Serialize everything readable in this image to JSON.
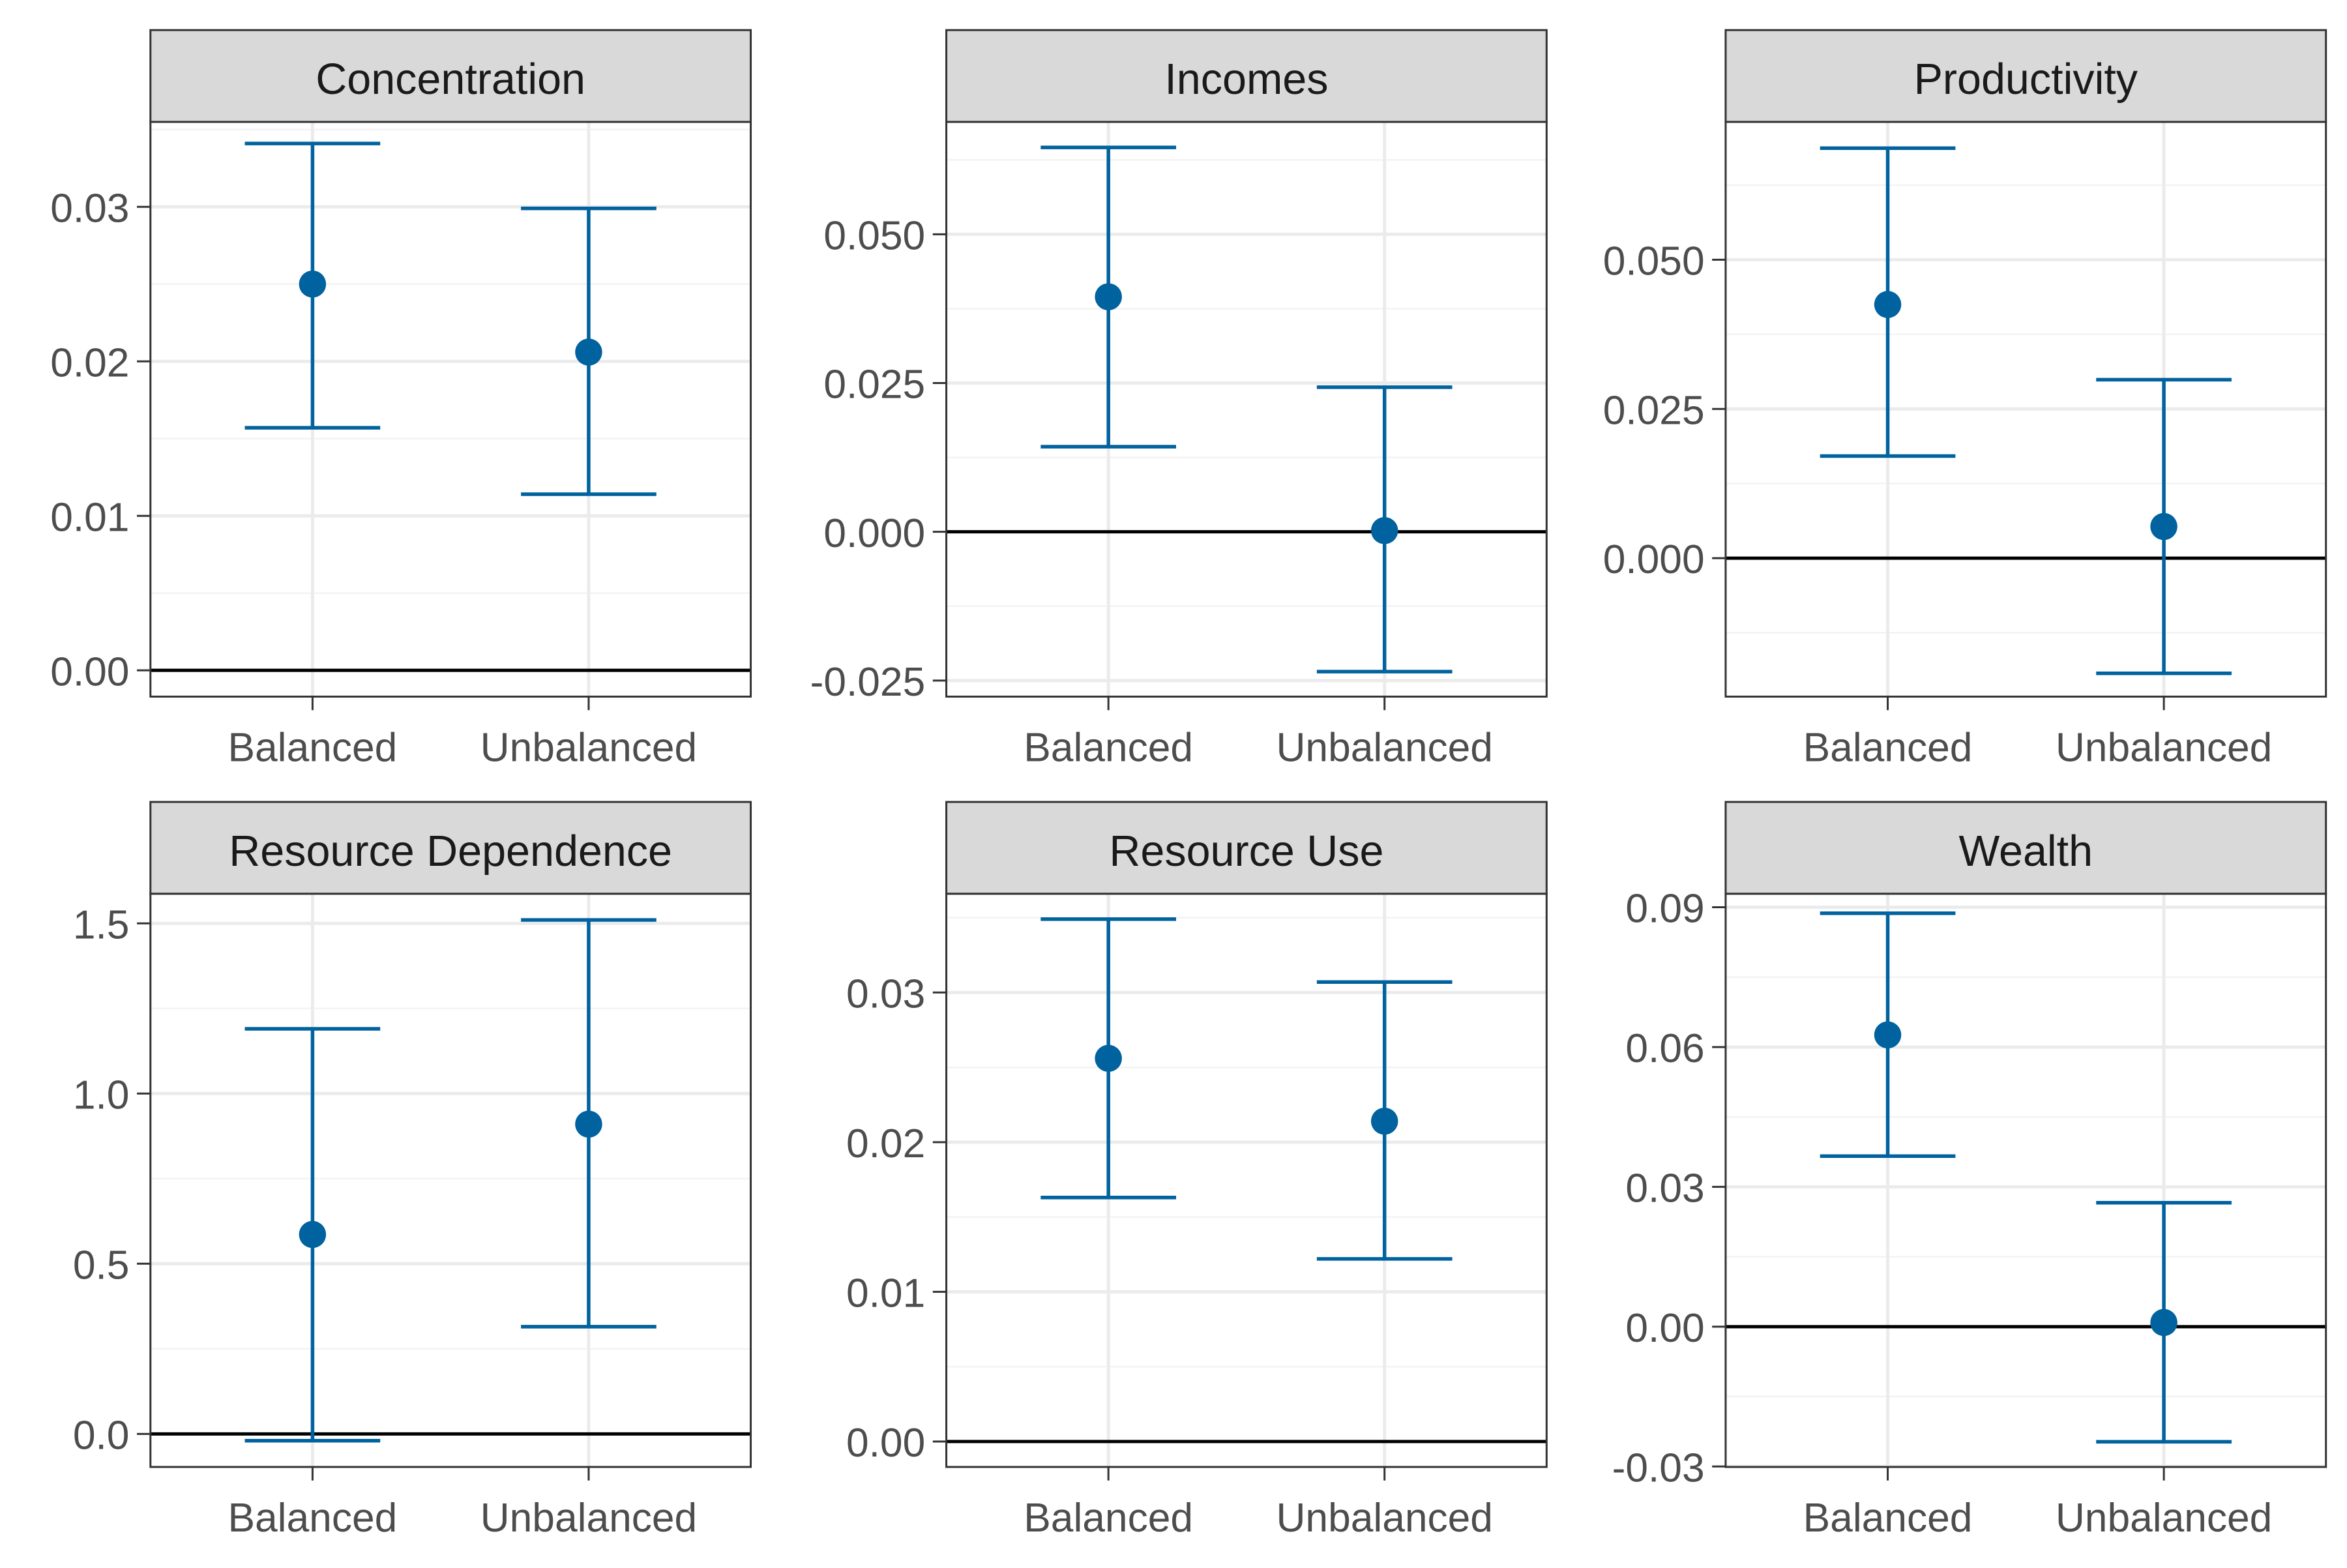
{
  "colors": {
    "point": "#00629e",
    "strip_fill": "#d9d9d9",
    "frame": "#333333",
    "grid_major": "#ebebeb",
    "grid_minor": "#f3f3f3",
    "zero_line": "#000000",
    "tick_label": "#4d4d4d",
    "strip_text": "#1a1a1a"
  },
  "chart_data": [
    {
      "type": "errorbar",
      "title": "Concentration",
      "categories": [
        "Balanced",
        "Unbalanced"
      ],
      "estimate": [
        0.025,
        0.0206
      ],
      "lower": [
        0.0157,
        0.0114
      ],
      "upper": [
        0.0341,
        0.0299
      ],
      "ylim": [
        -0.0017,
        0.0355
      ],
      "yticks": [
        0.0,
        0.01,
        0.02,
        0.03
      ],
      "ytick_labels": [
        "0.00",
        "0.01",
        "0.02",
        "0.03"
      ],
      "reference_line": 0
    },
    {
      "type": "errorbar",
      "title": "Incomes",
      "categories": [
        "Balanced",
        "Unbalanced"
      ],
      "estimate": [
        0.0395,
        0.0002
      ],
      "lower": [
        0.0143,
        -0.0235
      ],
      "upper": [
        0.0646,
        0.0243
      ],
      "ylim": [
        -0.0277,
        0.0689
      ],
      "yticks": [
        -0.025,
        0.0,
        0.025,
        0.05
      ],
      "ytick_labels": [
        "-0.025",
        "0.000",
        "0.025",
        "0.050"
      ],
      "reference_line": 0
    },
    {
      "type": "errorbar",
      "title": "Productivity",
      "categories": [
        "Balanced",
        "Unbalanced"
      ],
      "estimate": [
        0.0425,
        0.0053
      ],
      "lower": [
        0.0171,
        -0.0193
      ],
      "upper": [
        0.0687,
        0.0299
      ],
      "ylim": [
        -0.0232,
        0.0731
      ],
      "yticks": [
        0.0,
        0.025,
        0.05
      ],
      "ytick_labels": [
        "0.000",
        "0.025",
        "0.050"
      ],
      "reference_line": 0
    },
    {
      "type": "errorbar",
      "title": "Resource Dependence",
      "categories": [
        "Balanced",
        "Unbalanced"
      ],
      "estimate": [
        0.586,
        0.91
      ],
      "lower": [
        -0.02,
        0.315
      ],
      "upper": [
        1.19,
        1.51
      ],
      "ylim": [
        -0.097,
        1.587
      ],
      "yticks": [
        0.0,
        0.5,
        1.0,
        1.5
      ],
      "ytick_labels": [
        "0.0",
        "0.5",
        "1.0",
        "1.5"
      ],
      "reference_line": 0
    },
    {
      "type": "errorbar",
      "title": "Resource Use",
      "categories": [
        "Balanced",
        "Unbalanced"
      ],
      "estimate": [
        0.0256,
        0.0214
      ],
      "lower": [
        0.0163,
        0.0122
      ],
      "upper": [
        0.0349,
        0.0307
      ],
      "ylim": [
        -0.0017,
        0.0366
      ],
      "yticks": [
        0.0,
        0.01,
        0.02,
        0.03
      ],
      "ytick_labels": [
        "0.00",
        "0.01",
        "0.02",
        "0.03"
      ],
      "reference_line": 0
    },
    {
      "type": "errorbar",
      "title": "Wealth",
      "categories": [
        "Balanced",
        "Unbalanced"
      ],
      "estimate": [
        0.0626,
        0.0009
      ],
      "lower": [
        0.0366,
        -0.0247
      ],
      "upper": [
        0.0887,
        0.0266
      ],
      "ylim": [
        -0.0301,
        0.0929
      ],
      "yticks": [
        -0.03,
        0.0,
        0.03,
        0.06,
        0.09
      ],
      "ytick_labels": [
        "-0.03",
        "0.00",
        "0.03",
        "0.06",
        "0.09"
      ],
      "reference_line": 0
    }
  ]
}
